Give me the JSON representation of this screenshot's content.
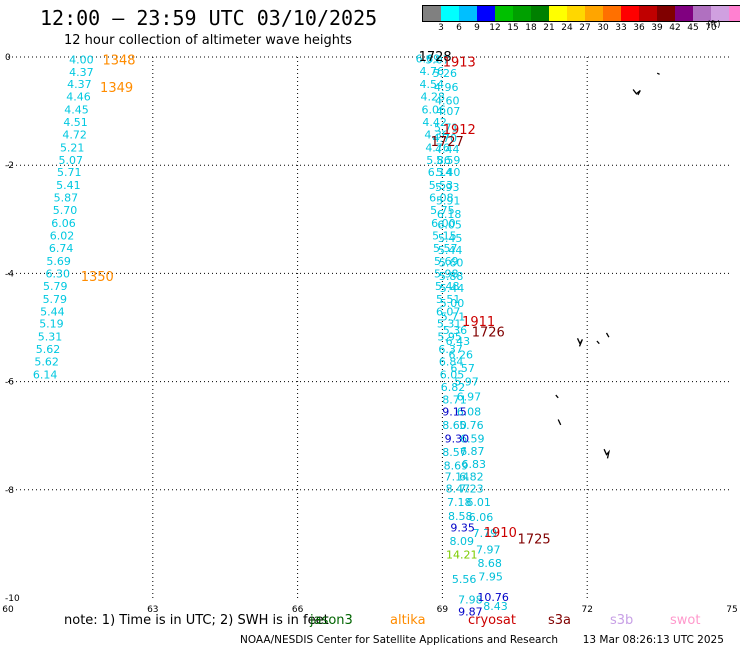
{
  "header": {
    "title": "12:00 – 23:59 UTC 03/10/2025",
    "subtitle": "12 hour collection of altimeter wave heights"
  },
  "colorbar": {
    "unit": "(ft)",
    "labels": [
      "3",
      "6",
      "9",
      "12",
      "15",
      "18",
      "21",
      "24",
      "27",
      "30",
      "33",
      "36",
      "39",
      "42",
      "45",
      "70"
    ],
    "colors": [
      "#808080",
      "#00ffff",
      "#00bfff",
      "#0000ff",
      "#00c000",
      "#00a000",
      "#008000",
      "#ffff00",
      "#ffd700",
      "#ffa500",
      "#ff7000",
      "#ff0000",
      "#c00000",
      "#800000",
      "#800080",
      "#b070c0",
      "#d0a0e0",
      "#ff80d0",
      "#000000"
    ]
  },
  "map": {
    "lon_range": [
      60,
      75
    ],
    "lat_range": [
      -10,
      0
    ],
    "lon_ticks": [
      "60",
      "63",
      "66",
      "69",
      "72",
      "75"
    ],
    "lat_ticks": [
      "0",
      "-2",
      "-4",
      "-6",
      "-8",
      "-10"
    ],
    "grid": "dotted",
    "tracks": [
      {
        "color": "#00c8e0",
        "points": [
          {
            "lon": 61.52,
            "lat": -0.05,
            "v": "4.00"
          },
          {
            "lon": 61.52,
            "lat": -0.28,
            "v": "4.37"
          },
          {
            "lon": 61.48,
            "lat": -0.5,
            "v": "4.37"
          },
          {
            "lon": 61.46,
            "lat": -0.73,
            "v": "4.46"
          },
          {
            "lon": 61.42,
            "lat": -0.97,
            "v": "4.45"
          },
          {
            "lon": 61.4,
            "lat": -1.2,
            "v": "4.51"
          },
          {
            "lon": 61.38,
            "lat": -1.43,
            "v": "4.72"
          },
          {
            "lon": 61.33,
            "lat": -1.67,
            "v": "5.21"
          },
          {
            "lon": 61.3,
            "lat": -1.9,
            "v": "5.07"
          },
          {
            "lon": 61.27,
            "lat": -2.13,
            "v": "5.71"
          },
          {
            "lon": 61.25,
            "lat": -2.37,
            "v": "5.41"
          },
          {
            "lon": 61.2,
            "lat": -2.6,
            "v": "5.87"
          },
          {
            "lon": 61.18,
            "lat": -2.83,
            "v": "5.70"
          },
          {
            "lon": 61.15,
            "lat": -3.07,
            "v": "6.06"
          },
          {
            "lon": 61.12,
            "lat": -3.3,
            "v": "6.02"
          },
          {
            "lon": 61.1,
            "lat": -3.53,
            "v": "6.74"
          },
          {
            "lon": 61.05,
            "lat": -3.77,
            "v": "5.69"
          },
          {
            "lon": 61.03,
            "lat": -4.0,
            "v": "6.30"
          },
          {
            "lon": 60.98,
            "lat": -4.23,
            "v": "5.79"
          },
          {
            "lon": 60.97,
            "lat": -4.47,
            "v": "5.79"
          },
          {
            "lon": 60.92,
            "lat": -4.7,
            "v": "5.44"
          },
          {
            "lon": 60.9,
            "lat": -4.93,
            "v": "5.19"
          },
          {
            "lon": 60.87,
            "lat": -5.17,
            "v": "5.31"
          },
          {
            "lon": 60.83,
            "lat": -5.4,
            "v": "5.62"
          },
          {
            "lon": 60.8,
            "lat": -5.63,
            "v": "5.62"
          },
          {
            "lon": 60.77,
            "lat": -5.87,
            "v": "6.14"
          }
        ]
      },
      {
        "color": "#00c8e0",
        "points": [
          {
            "lon": 68.7,
            "lat": -0.03,
            "v": "6.69"
          },
          {
            "lon": 68.9,
            "lat": -0.05,
            "v": "5.07"
          },
          {
            "lon": 68.78,
            "lat": -0.26,
            "v": "4.76"
          },
          {
            "lon": 69.05,
            "lat": -0.3,
            "v": "5.26"
          },
          {
            "lon": 68.78,
            "lat": -0.5,
            "v": "4.54"
          },
          {
            "lon": 69.08,
            "lat": -0.55,
            "v": "4.96"
          },
          {
            "lon": 68.8,
            "lat": -0.73,
            "v": "4.28"
          },
          {
            "lon": 69.1,
            "lat": -0.8,
            "v": "4.60"
          },
          {
            "lon": 68.82,
            "lat": -0.97,
            "v": "6.06"
          },
          {
            "lon": 69.12,
            "lat": -1.0,
            "v": "4.07"
          },
          {
            "lon": 68.84,
            "lat": -1.2,
            "v": "4.42"
          },
          {
            "lon": 69.08,
            "lat": -1.3,
            "v": "5.71"
          },
          {
            "lon": 68.88,
            "lat": -1.43,
            "v": "4.36"
          },
          {
            "lon": 69.05,
            "lat": -1.5,
            "v": "4.70"
          },
          {
            "lon": 68.9,
            "lat": -1.67,
            "v": "4.76"
          },
          {
            "lon": 69.1,
            "lat": -1.7,
            "v": "4.44"
          },
          {
            "lon": 68.92,
            "lat": -1.9,
            "v": "5.86"
          },
          {
            "lon": 69.12,
            "lat": -1.9,
            "v": "5.59"
          },
          {
            "lon": 68.95,
            "lat": -2.13,
            "v": "6.14"
          },
          {
            "lon": 69.12,
            "lat": -2.13,
            "v": "5.40"
          },
          {
            "lon": 68.97,
            "lat": -2.37,
            "v": "5.53"
          },
          {
            "lon": 69.1,
            "lat": -2.4,
            "v": "5.93"
          },
          {
            "lon": 68.98,
            "lat": -2.6,
            "v": "6.08"
          },
          {
            "lon": 69.12,
            "lat": -2.65,
            "v": "5.91"
          },
          {
            "lon": 69.0,
            "lat": -2.83,
            "v": "5.75"
          },
          {
            "lon": 69.14,
            "lat": -2.9,
            "v": "6.18"
          },
          {
            "lon": 69.02,
            "lat": -3.07,
            "v": "6.00"
          },
          {
            "lon": 69.15,
            "lat": -3.1,
            "v": "6.05"
          },
          {
            "lon": 69.04,
            "lat": -3.3,
            "v": "5.15"
          },
          {
            "lon": 69.16,
            "lat": -3.35,
            "v": "5.45"
          },
          {
            "lon": 69.06,
            "lat": -3.53,
            "v": "5.57"
          },
          {
            "lon": 69.16,
            "lat": -3.57,
            "v": "5.44"
          },
          {
            "lon": 69.08,
            "lat": -3.77,
            "v": "5.69"
          },
          {
            "lon": 69.18,
            "lat": -3.8,
            "v": "5.60"
          },
          {
            "lon": 69.08,
            "lat": -4.0,
            "v": "5.98"
          },
          {
            "lon": 69.18,
            "lat": -4.05,
            "v": "5.88"
          },
          {
            "lon": 69.1,
            "lat": -4.23,
            "v": "5.48"
          },
          {
            "lon": 69.2,
            "lat": -4.27,
            "v": "5.44"
          },
          {
            "lon": 69.12,
            "lat": -4.47,
            "v": "5.51"
          },
          {
            "lon": 69.2,
            "lat": -4.55,
            "v": "5.00"
          },
          {
            "lon": 69.12,
            "lat": -4.7,
            "v": "6.07"
          },
          {
            "lon": 69.22,
            "lat": -4.8,
            "v": "5.71"
          },
          {
            "lon": 69.14,
            "lat": -4.93,
            "v": "5.31"
          },
          {
            "lon": 69.26,
            "lat": -5.05,
            "v": "5.36"
          },
          {
            "lon": 69.15,
            "lat": -5.17,
            "v": "5.95"
          },
          {
            "lon": 69.32,
            "lat": -5.25,
            "v": "6.43"
          },
          {
            "lon": 69.17,
            "lat": -5.4,
            "v": "6.37"
          },
          {
            "lon": 69.38,
            "lat": -5.5,
            "v": "6.26"
          },
          {
            "lon": 69.18,
            "lat": -5.63,
            "v": "6.84"
          },
          {
            "lon": 69.42,
            "lat": -5.75,
            "v": "6.57"
          },
          {
            "lon": 69.2,
            "lat": -5.87,
            "v": "6.05"
          },
          {
            "lon": 69.5,
            "lat": -6.0,
            "v": "5.97"
          },
          {
            "lon": 69.22,
            "lat": -6.1,
            "v": "6.82"
          },
          {
            "lon": 69.55,
            "lat": -6.28,
            "v": "6.97"
          },
          {
            "lon": 69.25,
            "lat": -6.33,
            "v": "8.71"
          }
        ]
      },
      {
        "color": "#00bfd8",
        "points": [
          {
            "lon": 69.55,
            "lat": -6.55,
            "v": "6.08"
          },
          {
            "lon": 69.6,
            "lat": -6.8,
            "v": "5.76"
          },
          {
            "lon": 69.62,
            "lat": -7.05,
            "v": "6.59"
          },
          {
            "lon": 69.62,
            "lat": -7.28,
            "v": "6.87"
          },
          {
            "lon": 69.65,
            "lat": -7.52,
            "v": "6.83"
          },
          {
            "lon": 69.6,
            "lat": -7.75,
            "v": "6.82"
          },
          {
            "lon": 69.6,
            "lat": -7.98,
            "v": "7.23"
          },
          {
            "lon": 69.75,
            "lat": -8.23,
            "v": "6.01"
          },
          {
            "lon": 69.8,
            "lat": -8.5,
            "v": "6.06"
          },
          {
            "lon": 69.88,
            "lat": -8.8,
            "v": "7.79"
          },
          {
            "lon": 69.95,
            "lat": -9.1,
            "v": "7.97"
          },
          {
            "lon": 69.98,
            "lat": -9.35,
            "v": "8.68"
          },
          {
            "lon": 70.0,
            "lat": -9.6,
            "v": "7.95"
          },
          {
            "lon": 70.1,
            "lat": -10.15,
            "v": "8.43"
          }
        ]
      },
      {
        "color": "#00bfd8",
        "points": [
          {
            "lon": 69.25,
            "lat": -7.3,
            "v": "8.57"
          },
          {
            "lon": 69.28,
            "lat": -7.55,
            "v": "8.69"
          },
          {
            "lon": 69.3,
            "lat": -7.75,
            "v": "7.14"
          },
          {
            "lon": 69.32,
            "lat": -7.98,
            "v": "8.47"
          },
          {
            "lon": 69.35,
            "lat": -8.23,
            "v": "7.18"
          },
          {
            "lon": 69.37,
            "lat": -8.48,
            "v": "8.58"
          },
          {
            "lon": 69.4,
            "lat": -8.95,
            "v": "8.09"
          },
          {
            "lon": 69.45,
            "lat": -9.65,
            "v": "5.56"
          },
          {
            "lon": 69.58,
            "lat": -10.03,
            "v": "7.98"
          }
        ]
      },
      {
        "color": "#0000c8",
        "points": [
          {
            "lon": 69.25,
            "lat": -6.55,
            "v": "9.15"
          },
          {
            "lon": 69.3,
            "lat": -7.05,
            "v": "9.30"
          },
          {
            "lon": 69.42,
            "lat": -8.7,
            "v": "9.35"
          },
          {
            "lon": 70.05,
            "lat": -9.98,
            "v": "10.76"
          },
          {
            "lon": 69.58,
            "lat": -10.25,
            "v": "9.87"
          }
        ]
      },
      {
        "color": "#00bfd8",
        "points": [
          {
            "lon": 69.25,
            "lat": -6.8,
            "v": "8.60"
          }
        ]
      },
      {
        "color": "#7ccc00",
        "points": [
          {
            "lon": 69.4,
            "lat": -9.2,
            "v": "14.21"
          }
        ]
      }
    ],
    "time_labels": [
      {
        "lon": 62.3,
        "lat": -0.05,
        "t": "1348",
        "color": "#ff8c00"
      },
      {
        "lon": 62.25,
        "lat": -0.55,
        "t": "1349",
        "color": "#ff8c00"
      },
      {
        "lon": 61.85,
        "lat": -4.05,
        "t": "1350",
        "color": "#ff8c00"
      },
      {
        "lon": 68.85,
        "lat": 0.02,
        "t": "1728",
        "color": "#000000"
      },
      {
        "lon": 69.35,
        "lat": -0.08,
        "t": "1913",
        "color": "#cc0000"
      },
      {
        "lon": 69.35,
        "lat": -1.33,
        "t": "1912",
        "color": "#cc0000"
      },
      {
        "lon": 69.1,
        "lat": -1.55,
        "t": "1727",
        "color": "#800000"
      },
      {
        "lon": 69.75,
        "lat": -4.88,
        "t": "1911",
        "color": "#cc0000"
      },
      {
        "lon": 69.95,
        "lat": -5.07,
        "t": "1726",
        "color": "#800000"
      },
      {
        "lon": 70.2,
        "lat": -8.78,
        "t": "1910",
        "color": "#cc0000"
      },
      {
        "lon": 70.9,
        "lat": -8.9,
        "t": "1725",
        "color": "#800000"
      }
    ],
    "islands": [
      [
        [
          73.45,
          -0.3
        ],
        [
          73.5,
          -0.32
        ]
      ],
      [
        [
          72.95,
          -0.6
        ],
        [
          73.02,
          -0.68
        ],
        [
          73.1,
          -0.62
        ],
        [
          73.05,
          -0.7
        ]
      ],
      [
        [
          71.8,
          -5.2
        ],
        [
          71.85,
          -5.3
        ],
        [
          71.9,
          -5.22
        ],
        [
          71.84,
          -5.35
        ]
      ],
      [
        [
          72.2,
          -5.25
        ],
        [
          72.25,
          -5.3
        ]
      ],
      [
        [
          72.4,
          -5.1
        ],
        [
          72.45,
          -5.18
        ]
      ],
      [
        [
          71.35,
          -6.25
        ],
        [
          71.4,
          -6.3
        ]
      ],
      [
        [
          71.4,
          -6.7
        ],
        [
          71.45,
          -6.8
        ]
      ],
      [
        [
          72.35,
          -7.25
        ],
        [
          72.4,
          -7.35
        ],
        [
          72.45,
          -7.3
        ],
        [
          72.42,
          -7.42
        ]
      ]
    ]
  },
  "footer": {
    "note": "note:  1) Time is in UTC; 2) SWH is in feet",
    "satellites": [
      {
        "name": "jason3",
        "color": "#006400"
      },
      {
        "name": "altika",
        "color": "#ff8c00"
      },
      {
        "name": "cryosat",
        "color": "#cc0000"
      },
      {
        "name": "s3a",
        "color": "#800000"
      },
      {
        "name": "s3b",
        "color": "#c8a0e6"
      },
      {
        "name": "swot",
        "color": "#ff99cc"
      }
    ],
    "credit": "NOAA/NESDIS Center for Satellite Applications and Research",
    "timestamp": "13 Mar 08:26:13 UTC 2025"
  }
}
